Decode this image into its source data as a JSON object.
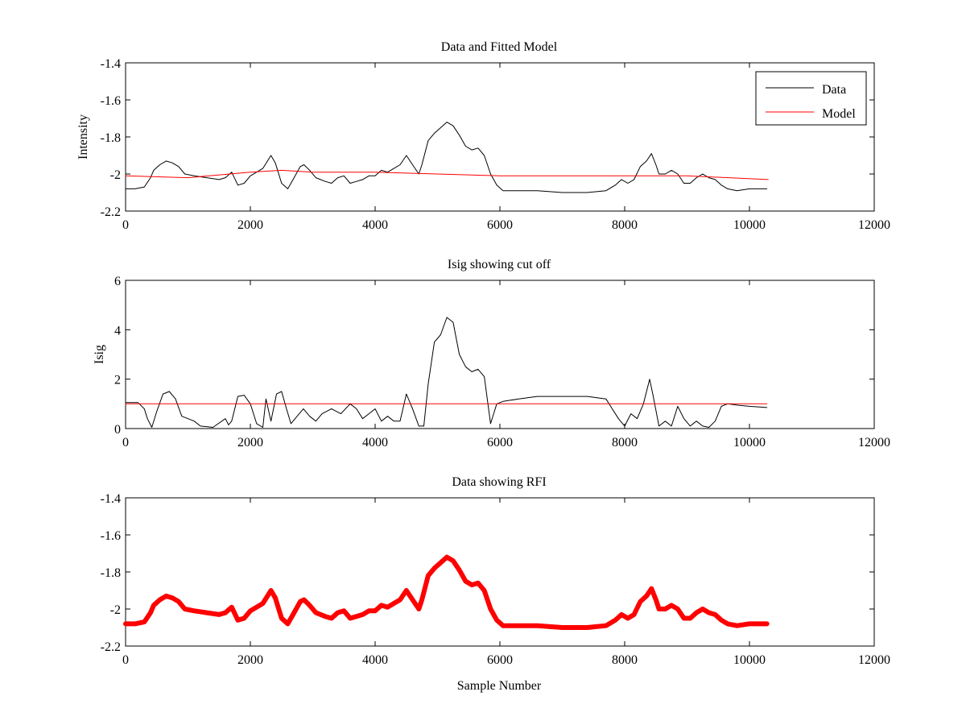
{
  "colors": {
    "data": "#000000",
    "model": "#ff0000",
    "rfi": "#ff0000",
    "axes": "#000000",
    "background": "#ffffff"
  },
  "chart_data": [
    {
      "type": "line",
      "title": "Data and Fitted Model",
      "xlabel": "",
      "ylabel": "Intensity",
      "xlim": [
        0,
        12000
      ],
      "ylim": [
        -2.2,
        -1.4
      ],
      "xticks": [
        0,
        2000,
        4000,
        6000,
        8000,
        10000,
        12000
      ],
      "yticks": [
        -2.2,
        -2,
        -1.8,
        -1.6,
        -1.4
      ],
      "xtick_labels": [
        "0",
        "2000",
        "4000",
        "6000",
        "8000",
        "10000",
        "12000"
      ],
      "ytick_labels": [
        "-2.2",
        "-2",
        "-1.8",
        "-1.6",
        "-1.4"
      ],
      "legend_position": "top-right",
      "series": [
        {
          "name": "Data",
          "color": "#000000",
          "x": [
            0,
            150,
            300,
            400,
            450,
            550,
            650,
            750,
            850,
            950,
            1100,
            1300,
            1500,
            1600,
            1700,
            1800,
            1900,
            2000,
            2100,
            2200,
            2330,
            2400,
            2500,
            2600,
            2700,
            2800,
            2860,
            2950,
            3050,
            3200,
            3300,
            3400,
            3500,
            3600,
            3700,
            3800,
            3900,
            4000,
            4100,
            4200,
            4300,
            4400,
            4500,
            4600,
            4700,
            4750,
            4850,
            4950,
            5050,
            5150,
            5250,
            5350,
            5450,
            5550,
            5650,
            5750,
            5850,
            5950,
            6050,
            6300,
            6600,
            7000,
            7400,
            7700,
            7850,
            7950,
            8050,
            8150,
            8250,
            8350,
            8430,
            8500,
            8550,
            8650,
            8750,
            8850,
            8950,
            9050,
            9150,
            9250,
            9350,
            9450,
            9550,
            9650,
            9800,
            10000,
            10280
          ],
          "y": [
            -2.08,
            -2.08,
            -2.07,
            -2.02,
            -1.98,
            -1.95,
            -1.93,
            -1.94,
            -1.96,
            -2.0,
            -2.01,
            -2.02,
            -2.03,
            -2.02,
            -1.99,
            -2.06,
            -2.05,
            -2.01,
            -1.99,
            -1.97,
            -1.9,
            -1.94,
            -2.05,
            -2.08,
            -2.02,
            -1.96,
            -1.95,
            -1.98,
            -2.02,
            -2.04,
            -2.05,
            -2.02,
            -2.01,
            -2.05,
            -2.04,
            -2.03,
            -2.01,
            -2.01,
            -1.98,
            -1.99,
            -1.97,
            -1.95,
            -1.9,
            -1.95,
            -2.0,
            -1.95,
            -1.82,
            -1.78,
            -1.75,
            -1.72,
            -1.74,
            -1.79,
            -1.85,
            -1.87,
            -1.86,
            -1.9,
            -2.0,
            -2.06,
            -2.09,
            -2.09,
            -2.09,
            -2.1,
            -2.1,
            -2.09,
            -2.06,
            -2.03,
            -2.05,
            -2.03,
            -1.96,
            -1.93,
            -1.89,
            -1.95,
            -2.0,
            -2.0,
            -1.98,
            -2.0,
            -2.05,
            -2.05,
            -2.02,
            -2.0,
            -2.02,
            -2.03,
            -2.06,
            -2.08,
            -2.09,
            -2.08,
            -2.08
          ]
        },
        {
          "name": "Model",
          "color": "#ff0000",
          "x": [
            0,
            1000,
            2000,
            2500,
            3000,
            4000,
            5000,
            6000,
            7000,
            8000,
            9000,
            10300
          ],
          "y": [
            -2.01,
            -2.02,
            -1.99,
            -1.98,
            -1.99,
            -1.99,
            -2.0,
            -2.01,
            -2.01,
            -2.01,
            -2.01,
            -2.03
          ]
        }
      ]
    },
    {
      "type": "line",
      "title": "Isig showing cut off",
      "xlabel": "",
      "ylabel": "Isig",
      "xlim": [
        0,
        12000
      ],
      "ylim": [
        0,
        6
      ],
      "xticks": [
        0,
        2000,
        4000,
        6000,
        8000,
        10000,
        12000
      ],
      "yticks": [
        0,
        2,
        4,
        6
      ],
      "xtick_labels": [
        "0",
        "2000",
        "4000",
        "6000",
        "8000",
        "10000",
        "12000"
      ],
      "ytick_labels": [
        "0",
        "2",
        "4",
        "6"
      ],
      "series": [
        {
          "name": "",
          "color": "#000000",
          "x": [
            0,
            200,
            300,
            350,
            420,
            500,
            600,
            700,
            800,
            900,
            1000,
            1100,
            1200,
            1400,
            1600,
            1650,
            1700,
            1800,
            1900,
            2000,
            2100,
            2200,
            2250,
            2330,
            2420,
            2500,
            2580,
            2650,
            2750,
            2850,
            2950,
            3050,
            3150,
            3300,
            3450,
            3600,
            3700,
            3800,
            3900,
            4000,
            4100,
            4200,
            4300,
            4400,
            4500,
            4600,
            4700,
            4780,
            4850,
            4950,
            5050,
            5150,
            5250,
            5350,
            5450,
            5550,
            5650,
            5750,
            5850,
            5950,
            6050,
            6300,
            6600,
            7000,
            7400,
            7700,
            7800,
            7900,
            8000,
            8100,
            8200,
            8300,
            8400,
            8450,
            8550,
            8650,
            8750,
            8850,
            8950,
            9050,
            9150,
            9250,
            9350,
            9450,
            9550,
            9650,
            9800,
            10000,
            10280
          ],
          "y": [
            1.05,
            1.05,
            0.8,
            0.4,
            0.05,
            0.7,
            1.4,
            1.5,
            1.2,
            0.5,
            0.4,
            0.3,
            0.1,
            0.05,
            0.4,
            0.15,
            0.3,
            1.3,
            1.35,
            1.0,
            0.2,
            0.05,
            1.2,
            0.3,
            1.4,
            1.5,
            0.8,
            0.2,
            0.5,
            0.8,
            0.5,
            0.3,
            0.6,
            0.8,
            0.6,
            1.0,
            0.8,
            0.4,
            0.6,
            0.8,
            0.3,
            0.5,
            0.3,
            0.3,
            1.4,
            0.8,
            0.1,
            0.1,
            1.8,
            3.5,
            3.8,
            4.5,
            4.3,
            3.0,
            2.5,
            2.3,
            2.4,
            2.1,
            0.2,
            1.0,
            1.1,
            1.2,
            1.3,
            1.3,
            1.3,
            1.2,
            0.8,
            0.4,
            0.1,
            0.6,
            0.4,
            1.0,
            2.0,
            1.4,
            0.1,
            0.3,
            0.1,
            0.9,
            0.4,
            0.1,
            0.3,
            0.1,
            0.05,
            0.3,
            0.9,
            1.0,
            0.95,
            0.9,
            0.85
          ]
        },
        {
          "name": "",
          "color": "#ff0000",
          "x": [
            0,
            10280
          ],
          "y": [
            1.0,
            1.0
          ]
        }
      ]
    },
    {
      "type": "line",
      "title": "Data showing RFI",
      "xlabel": "Sample Number",
      "ylabel": "",
      "xlim": [
        0,
        12000
      ],
      "ylim": [
        -2.2,
        -1.4
      ],
      "xticks": [
        0,
        2000,
        4000,
        6000,
        8000,
        10000,
        12000
      ],
      "yticks": [
        -2.2,
        -2,
        -1.8,
        -1.6,
        -1.4
      ],
      "xtick_labels": [
        "0",
        "2000",
        "4000",
        "6000",
        "8000",
        "10000",
        "12000"
      ],
      "ytick_labels": [
        "-2.2",
        "-2",
        "-1.8",
        "-1.6",
        "-1.4"
      ],
      "series": [
        {
          "name": "",
          "color": "#ff0000",
          "x": [
            0,
            150,
            300,
            400,
            450,
            550,
            650,
            750,
            850,
            950,
            1100,
            1300,
            1500,
            1600,
            1700,
            1800,
            1900,
            2000,
            2100,
            2200,
            2330,
            2400,
            2500,
            2600,
            2700,
            2800,
            2860,
            2950,
            3050,
            3200,
            3300,
            3400,
            3500,
            3600,
            3700,
            3800,
            3900,
            4000,
            4100,
            4200,
            4300,
            4400,
            4500,
            4600,
            4700,
            4750,
            4850,
            4950,
            5050,
            5150,
            5250,
            5350,
            5450,
            5550,
            5650,
            5750,
            5850,
            5950,
            6050,
            6300,
            6600,
            7000,
            7400,
            7700,
            7850,
            7950,
            8050,
            8150,
            8250,
            8350,
            8430,
            8500,
            8550,
            8650,
            8750,
            8850,
            8950,
            9050,
            9150,
            9250,
            9350,
            9450,
            9550,
            9650,
            9800,
            10000,
            10280
          ],
          "y": [
            -2.08,
            -2.08,
            -2.07,
            -2.02,
            -1.98,
            -1.95,
            -1.93,
            -1.94,
            -1.96,
            -2.0,
            -2.01,
            -2.02,
            -2.03,
            -2.02,
            -1.99,
            -2.06,
            -2.05,
            -2.01,
            -1.99,
            -1.97,
            -1.9,
            -1.94,
            -2.05,
            -2.08,
            -2.02,
            -1.96,
            -1.95,
            -1.98,
            -2.02,
            -2.04,
            -2.05,
            -2.02,
            -2.01,
            -2.05,
            -2.04,
            -2.03,
            -2.01,
            -2.01,
            -1.98,
            -1.99,
            -1.97,
            -1.95,
            -1.9,
            -1.95,
            -2.0,
            -1.95,
            -1.82,
            -1.78,
            -1.75,
            -1.72,
            -1.74,
            -1.79,
            -1.85,
            -1.87,
            -1.86,
            -1.9,
            -2.0,
            -2.06,
            -2.09,
            -2.09,
            -2.09,
            -2.1,
            -2.1,
            -2.09,
            -2.06,
            -2.03,
            -2.05,
            -2.03,
            -1.96,
            -1.93,
            -1.89,
            -1.95,
            -2.0,
            -2.0,
            -1.98,
            -2.0,
            -2.05,
            -2.05,
            -2.02,
            -2.0,
            -2.02,
            -2.03,
            -2.06,
            -2.08,
            -2.09,
            -2.08,
            -2.08
          ]
        }
      ]
    }
  ]
}
